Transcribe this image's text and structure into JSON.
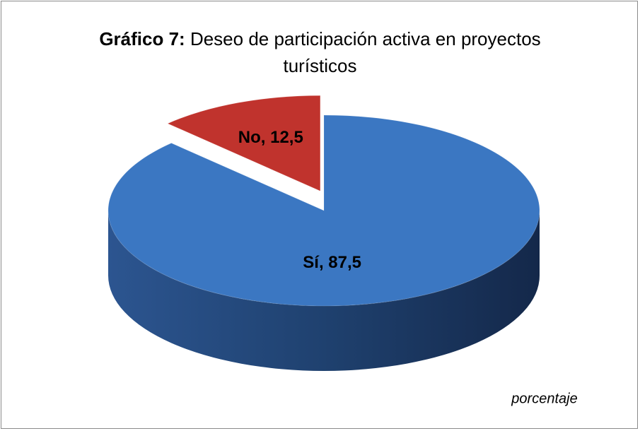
{
  "chart_data": {
    "type": "pie",
    "title_label": "Gráfico 7:",
    "title": "Deseo de participación activa en proyectos turísticos",
    "categories": [
      "Sí",
      "No"
    ],
    "values": [
      87.5,
      12.5
    ],
    "value_labels": [
      "Sí, 87,5",
      "No, 12,5"
    ],
    "colors": [
      "#3b77c2",
      "#c0332d"
    ],
    "exploded": [
      false,
      true
    ],
    "note": "porcentaje"
  }
}
